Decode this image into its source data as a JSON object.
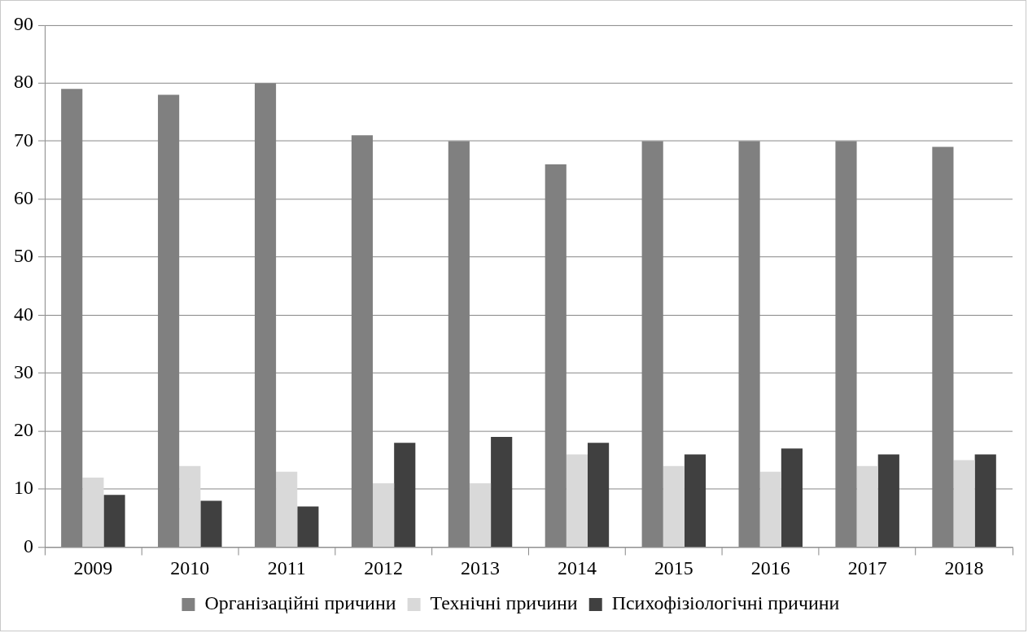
{
  "chart_data": {
    "type": "bar",
    "categories": [
      "2009",
      "2010",
      "2011",
      "2012",
      "2013",
      "2014",
      "2015",
      "2016",
      "2017",
      "2018"
    ],
    "series": [
      {
        "name": "Організаційні причини",
        "color": "#808080",
        "values": [
          79,
          78,
          80,
          71,
          70,
          66,
          70,
          70,
          70,
          69
        ]
      },
      {
        "name": "Технічні причини",
        "color": "#d9d9d9",
        "values": [
          12,
          14,
          13,
          11,
          11,
          16,
          14,
          13,
          14,
          15
        ]
      },
      {
        "name": "Психофізіологічні причини",
        "color": "#404040",
        "values": [
          9,
          8,
          7,
          18,
          19,
          18,
          16,
          17,
          16,
          16
        ]
      }
    ],
    "ylim": [
      0,
      90
    ],
    "yticks": [
      0,
      10,
      20,
      30,
      40,
      50,
      60,
      70,
      80,
      90
    ],
    "grid": "y",
    "legend": "bottom"
  }
}
